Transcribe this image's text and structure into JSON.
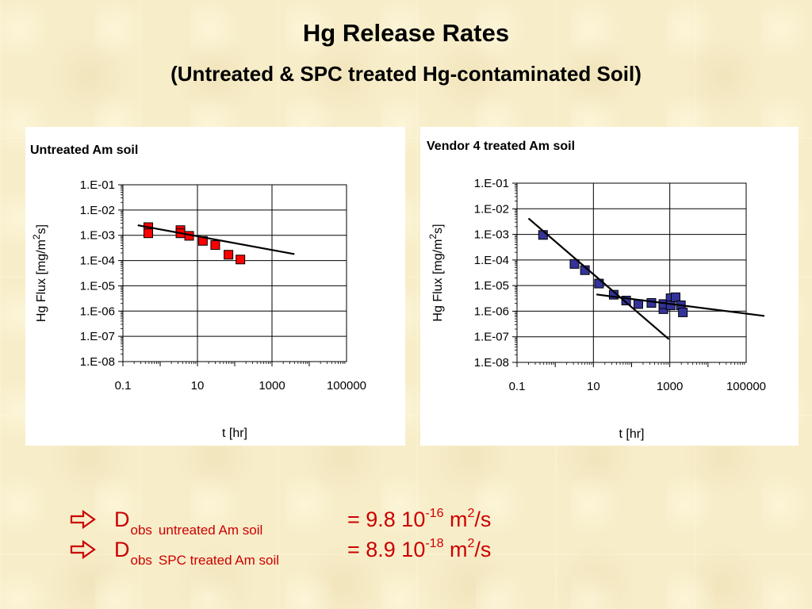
{
  "title": "Hg Release Rates",
  "subtitle": "(Untreated & SPC treated Hg-contaminated Soil)",
  "colors": {
    "series_left": "#ff0000",
    "series_right": "#333399",
    "fit_line": "#000000",
    "bullet_text": "#cc0000"
  },
  "chart_data": [
    {
      "type": "scatter",
      "title": "Untreated Am soil",
      "xlabel": "t [hr]",
      "ylabel": "Hg Flux [mg/m",
      "ylabel_sup": "2",
      "ylabel_tail": "s]",
      "xscale": "log",
      "yscale": "log",
      "xlim": [
        0.1,
        100000
      ],
      "ylim": [
        1e-08,
        0.1
      ],
      "xticks": [
        "0.1",
        "10",
        "1000",
        "100000"
      ],
      "yticks": [
        "1.E-08",
        "1.E-07",
        "1.E-06",
        "1.E-05",
        "1.E-04",
        "1.E-03",
        "1.E-02",
        "1.E-01"
      ],
      "grid": true,
      "series": [
        {
          "marker": "square",
          "color": "#ff0000",
          "x": [
            0.48,
            0.48,
            3.5,
            3.5,
            6.0,
            14,
            30,
            68,
            142
          ],
          "y": [
            0.0021,
            0.0012,
            0.0016,
            0.0012,
            0.00095,
            0.0006,
            0.00041,
            0.00017,
            0.00011
          ]
        }
      ],
      "fit_lines": [
        {
          "x": [
            0.25,
            4000
          ],
          "y": [
            0.0025,
            0.00018
          ]
        }
      ]
    },
    {
      "type": "scatter",
      "title": "Vendor 4 treated Am soil",
      "xlabel": "t [hr]",
      "ylabel": "Hg Flux [mg/m",
      "ylabel_sup": "2",
      "ylabel_tail": "s]",
      "xscale": "log",
      "yscale": "log",
      "xlim": [
        0.1,
        100000
      ],
      "ylim": [
        1e-08,
        0.1
      ],
      "xticks": [
        "0.1",
        "10",
        "1000",
        "100000"
      ],
      "yticks": [
        "1.E-08",
        "1.E-07",
        "1.E-06",
        "1.E-05",
        "1.E-04",
        "1.E-03",
        "1.E-02",
        "1.E-01"
      ],
      "grid": true,
      "series": [
        {
          "marker": "square",
          "color": "#333399",
          "x": [
            0.48,
            3.2,
            6.0,
            14,
            34,
            72,
            150,
            330,
            680,
            680,
            1050,
            1050,
            1420,
            1950,
            2200
          ],
          "y": [
            0.00095,
            7e-05,
            4e-05,
            1.2e-05,
            4.4e-06,
            2.6e-06,
            1.9e-06,
            2.1e-06,
            1.2e-06,
            1.9e-06,
            3.2e-06,
            1.7e-06,
            3.5e-06,
            1.7e-06,
            9e-07
          ]
        }
      ],
      "fit_lines": [
        {
          "x": [
            0.2,
            950
          ],
          "y": [
            0.0042,
            8e-08
          ]
        },
        {
          "x": [
            12,
            300000
          ],
          "y": [
            4.5e-06,
            6.5e-07
          ]
        }
      ]
    }
  ],
  "bullets": [
    {
      "symbol": "D",
      "sub_obs": "obs",
      "sub_desc": "untreated Am soil",
      "eq": "= 9.8 10",
      "exp": "-16",
      "unit": " m",
      "unit_sup": "2",
      "unit_tail": "/s"
    },
    {
      "symbol": "D",
      "sub_obs": "obs",
      "sub_desc": "SPC treated Am soil",
      "eq": "= 8.9 10",
      "exp": "-18",
      "unit": " m",
      "unit_sup": "2",
      "unit_tail": "/s"
    }
  ]
}
